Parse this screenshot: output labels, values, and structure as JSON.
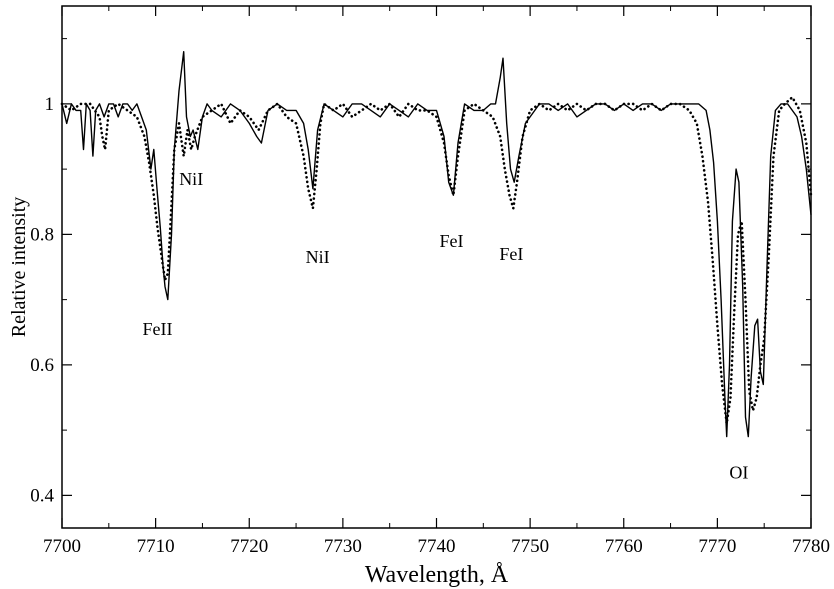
{
  "chart_data": {
    "type": "line",
    "xlabel": "Wavelength, Å",
    "ylabel": "Relative intensity",
    "xlim": [
      7700,
      7780
    ],
    "ylim": [
      0.35,
      1.15
    ],
    "x_ticks": [
      7700,
      7710,
      7720,
      7730,
      7740,
      7750,
      7760,
      7770,
      7780
    ],
    "x_tick_labels": [
      "7700",
      "7710",
      "7720",
      "7730",
      "7740",
      "7750",
      "7760",
      "7770",
      "7780"
    ],
    "y_ticks": [
      0.4,
      0.6,
      0.8,
      1.0
    ],
    "y_tick_labels": [
      "0.4",
      "0.6",
      "0.8",
      "1"
    ],
    "grid": false,
    "legend": "none",
    "series": [
      {
        "style": "solid",
        "color": "#000000",
        "x": [
          7700.0,
          7700.5,
          7701.0,
          7701.5,
          7702.0,
          7702.3,
          7702.6,
          7703.0,
          7703.3,
          7703.6,
          7704.0,
          7704.5,
          7705.0,
          7705.5,
          7706.0,
          7706.5,
          7707.0,
          7707.5,
          7708.0,
          7708.5,
          7709.0,
          7709.5,
          7709.8,
          7710.2,
          7710.5,
          7710.8,
          7711.0,
          7711.3,
          7711.7,
          7712.0,
          7712.5,
          7713.0,
          7713.3,
          7713.7,
          7714.0,
          7714.5,
          7715.0,
          7715.5,
          7716.0,
          7717.0,
          7718.0,
          7719.0,
          7720.0,
          7720.8,
          7721.3,
          7722.0,
          7723.0,
          7724.0,
          7725.0,
          7725.8,
          7726.3,
          7726.8,
          7727.3,
          7728.0,
          7729.0,
          7730.0,
          7731.0,
          7732.0,
          7733.0,
          7734.0,
          7735.0,
          7736.0,
          7737.0,
          7738.0,
          7739.0,
          7740.0,
          7740.8,
          7741.3,
          7741.8,
          7742.3,
          7743.0,
          7744.0,
          7745.0,
          7745.8,
          7746.3,
          7746.8,
          7747.1,
          7747.5,
          7747.9,
          7748.3,
          7748.8,
          7749.5,
          7750.0,
          7750.5,
          7751.0,
          7752.0,
          7753.0,
          7754.0,
          7755.0,
          7756.0,
          7757.0,
          7758.0,
          7759.0,
          7760.0,
          7761.0,
          7762.0,
          7763.0,
          7764.0,
          7765.0,
          7766.0,
          7767.0,
          7768.0,
          7768.8,
          7769.2,
          7769.6,
          7770.0,
          7770.4,
          7770.8,
          7771.0,
          7771.3,
          7771.6,
          7772.0,
          7772.3,
          7772.7,
          7773.0,
          7773.3,
          7773.6,
          7774.0,
          7774.3,
          7774.6,
          7774.9,
          7775.3,
          7775.7,
          7776.2,
          7776.8,
          7777.5,
          7778.0,
          7778.5,
          7779.0,
          7779.5,
          7780.0
        ],
        "y": [
          1.0,
          0.97,
          1.0,
          0.99,
          0.99,
          0.93,
          1.0,
          0.99,
          0.92,
          0.99,
          1.0,
          0.98,
          1.0,
          1.0,
          0.98,
          1.0,
          1.0,
          0.99,
          1.0,
          0.98,
          0.96,
          0.9,
          0.93,
          0.86,
          0.81,
          0.75,
          0.72,
          0.7,
          0.8,
          0.93,
          1.02,
          1.08,
          0.98,
          0.95,
          0.96,
          0.93,
          0.98,
          1.0,
          0.99,
          0.98,
          1.0,
          0.99,
          0.97,
          0.95,
          0.94,
          0.99,
          1.0,
          0.99,
          0.99,
          0.97,
          0.93,
          0.87,
          0.96,
          1.0,
          0.99,
          0.98,
          1.0,
          1.0,
          0.99,
          0.98,
          1.0,
          0.99,
          0.98,
          1.0,
          0.99,
          0.99,
          0.95,
          0.88,
          0.86,
          0.94,
          1.0,
          0.99,
          0.99,
          1.0,
          1.0,
          1.04,
          1.07,
          0.97,
          0.9,
          0.88,
          0.92,
          0.97,
          0.98,
          0.99,
          1.0,
          1.0,
          0.99,
          1.0,
          0.98,
          0.99,
          1.0,
          1.0,
          0.99,
          1.0,
          0.99,
          1.0,
          1.0,
          0.99,
          1.0,
          1.0,
          1.0,
          1.0,
          0.99,
          0.96,
          0.91,
          0.82,
          0.7,
          0.55,
          0.49,
          0.6,
          0.82,
          0.9,
          0.88,
          0.72,
          0.52,
          0.49,
          0.58,
          0.66,
          0.67,
          0.59,
          0.57,
          0.75,
          0.92,
          0.99,
          1.0,
          1.0,
          0.99,
          0.98,
          0.95,
          0.9,
          0.83
        ]
      },
      {
        "style": "dotted",
        "color": "#000000",
        "x": [
          7700.0,
          7701.0,
          7702.0,
          7703.0,
          7704.0,
          7704.3,
          7704.6,
          7705.0,
          7706.0,
          7707.0,
          7708.0,
          7708.8,
          7709.3,
          7709.8,
          7710.2,
          7710.6,
          7711.0,
          7711.3,
          7711.6,
          7712.0,
          7712.5,
          7713.0,
          7713.4,
          7713.8,
          7714.2,
          7715.0,
          7716.0,
          7717.0,
          7718.0,
          7719.0,
          7720.0,
          7721.0,
          7722.0,
          7723.0,
          7724.0,
          7725.0,
          7725.8,
          7726.3,
          7726.8,
          7727.2,
          7727.6,
          7728.0,
          7729.0,
          7730.0,
          7731.0,
          7732.0,
          7733.0,
          7734.0,
          7735.0,
          7736.0,
          7737.0,
          7738.0,
          7739.0,
          7740.0,
          7740.8,
          7741.3,
          7741.8,
          7742.3,
          7743.0,
          7744.0,
          7745.0,
          7746.0,
          7746.8,
          7747.3,
          7747.8,
          7748.2,
          7748.6,
          7749.2,
          7750.0,
          7751.0,
          7752.0,
          7753.0,
          7754.0,
          7755.0,
          7756.0,
          7757.0,
          7758.0,
          7759.0,
          7760.0,
          7761.0,
          7762.0,
          7763.0,
          7764.0,
          7765.0,
          7766.0,
          7767.0,
          7767.8,
          7768.4,
          7769.0,
          7769.5,
          7770.0,
          7770.5,
          7771.0,
          7771.4,
          7771.8,
          7772.2,
          7772.6,
          7773.0,
          7773.4,
          7773.8,
          7774.2,
          7774.6,
          7775.0,
          7775.5,
          7776.0,
          7776.6,
          7777.2,
          7778.0,
          7778.8,
          7779.5,
          7780.0
        ],
        "y": [
          1.0,
          0.99,
          1.0,
          1.0,
          0.98,
          0.95,
          0.93,
          0.99,
          1.0,
          0.99,
          0.98,
          0.95,
          0.91,
          0.86,
          0.81,
          0.77,
          0.73,
          0.74,
          0.82,
          0.93,
          0.97,
          0.92,
          0.96,
          0.93,
          0.95,
          0.98,
          0.99,
          1.0,
          0.97,
          0.99,
          0.98,
          0.96,
          0.99,
          1.0,
          0.98,
          0.97,
          0.92,
          0.87,
          0.84,
          0.9,
          0.97,
          1.0,
          0.99,
          1.0,
          0.98,
          0.99,
          1.0,
          0.99,
          1.0,
          0.98,
          1.0,
          0.99,
          0.99,
          0.98,
          0.94,
          0.89,
          0.86,
          0.92,
          0.99,
          1.0,
          0.99,
          0.98,
          0.95,
          0.9,
          0.86,
          0.84,
          0.88,
          0.95,
          0.99,
          1.0,
          0.99,
          1.0,
          0.99,
          1.0,
          0.99,
          1.0,
          1.0,
          0.99,
          1.0,
          1.0,
          0.99,
          1.0,
          0.99,
          1.0,
          1.0,
          0.99,
          0.97,
          0.92,
          0.85,
          0.76,
          0.66,
          0.57,
          0.51,
          0.55,
          0.68,
          0.8,
          0.82,
          0.7,
          0.56,
          0.53,
          0.55,
          0.6,
          0.64,
          0.77,
          0.92,
          0.99,
          1.0,
          1.01,
          0.99,
          0.94,
          0.86
        ]
      }
    ],
    "annotations": [
      {
        "text": "FeII",
        "x": 7710.2,
        "y": 0.655
      },
      {
        "text": "NiI",
        "x": 7713.8,
        "y": 0.885
      },
      {
        "text": "NiI",
        "x": 7727.3,
        "y": 0.765
      },
      {
        "text": "FeI",
        "x": 7741.6,
        "y": 0.79
      },
      {
        "text": "FeI",
        "x": 7748.0,
        "y": 0.77
      },
      {
        "text": "OI",
        "x": 7772.3,
        "y": 0.435
      }
    ]
  }
}
